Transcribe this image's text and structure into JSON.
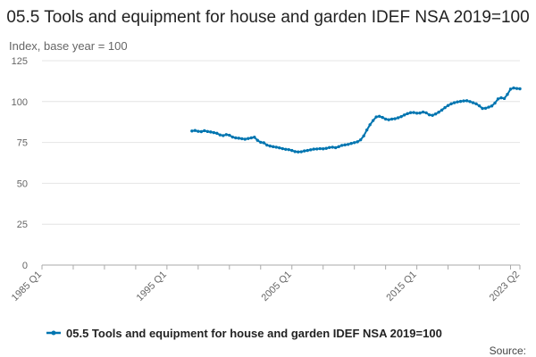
{
  "chart_data": {
    "type": "line",
    "title": "05.5 Tools and equipment for house and garden IDEF NSA 2019=100",
    "ylabel": "Index, base year = 100",
    "xlabel": "",
    "ylim": [
      0,
      125
    ],
    "yticks": [
      "0",
      "25",
      "50",
      "75",
      "100",
      "125"
    ],
    "xlim": [
      "1985 Q1",
      "2023 Q2"
    ],
    "xticks": [
      "1985 Q1",
      "1995 Q1",
      "2005 Q1",
      "2015 Q1",
      "2023 Q2"
    ],
    "grid": true,
    "legend_position": "bottom",
    "series": [
      {
        "name": "05.5 Tools and equipment for house and garden IDEF NSA 2019=100",
        "color": "#0075b0",
        "points": [
          [
            "1997 Q1",
            82.0
          ],
          [
            "1997 Q2",
            82.3
          ],
          [
            "1997 Q3",
            81.8
          ],
          [
            "1997 Q4",
            81.6
          ],
          [
            "1998 Q1",
            82.2
          ],
          [
            "1998 Q2",
            81.7
          ],
          [
            "1998 Q3",
            81.4
          ],
          [
            "1998 Q4",
            81.0
          ],
          [
            "1999 Q1",
            80.6
          ],
          [
            "1999 Q2",
            79.6
          ],
          [
            "1999 Q3",
            79.2
          ],
          [
            "1999 Q4",
            79.8
          ],
          [
            "2000 Q1",
            79.4
          ],
          [
            "2000 Q2",
            78.3
          ],
          [
            "2000 Q3",
            77.8
          ],
          [
            "2000 Q4",
            77.6
          ],
          [
            "2001 Q1",
            77.3
          ],
          [
            "2001 Q2",
            77.0
          ],
          [
            "2001 Q3",
            77.4
          ],
          [
            "2001 Q4",
            77.8
          ],
          [
            "2002 Q1",
            78.2
          ],
          [
            "2002 Q2",
            76.3
          ],
          [
            "2002 Q3",
            75.1
          ],
          [
            "2002 Q4",
            74.8
          ],
          [
            "2003 Q1",
            73.4
          ],
          [
            "2003 Q2",
            72.8
          ],
          [
            "2003 Q3",
            72.4
          ],
          [
            "2003 Q4",
            72.1
          ],
          [
            "2004 Q1",
            71.7
          ],
          [
            "2004 Q2",
            71.2
          ],
          [
            "2004 Q3",
            70.8
          ],
          [
            "2004 Q4",
            70.6
          ],
          [
            "2005 Q1",
            70.1
          ],
          [
            "2005 Q2",
            69.4
          ],
          [
            "2005 Q3",
            69.2
          ],
          [
            "2005 Q4",
            69.3
          ],
          [
            "2006 Q1",
            69.8
          ],
          [
            "2006 Q2",
            70.1
          ],
          [
            "2006 Q3",
            70.5
          ],
          [
            "2006 Q4",
            70.9
          ],
          [
            "2007 Q1",
            71.0
          ],
          [
            "2007 Q2",
            71.2
          ],
          [
            "2007 Q3",
            71.1
          ],
          [
            "2007 Q4",
            71.4
          ],
          [
            "2008 Q1",
            71.9
          ],
          [
            "2008 Q2",
            72.1
          ],
          [
            "2008 Q3",
            71.8
          ],
          [
            "2008 Q4",
            72.4
          ],
          [
            "2009 Q1",
            73.2
          ],
          [
            "2009 Q2",
            73.5
          ],
          [
            "2009 Q3",
            73.8
          ],
          [
            "2009 Q4",
            74.4
          ],
          [
            "2010 Q1",
            74.9
          ],
          [
            "2010 Q2",
            75.4
          ],
          [
            "2010 Q3",
            76.6
          ],
          [
            "2010 Q4",
            79.0
          ],
          [
            "2011 Q1",
            82.6
          ],
          [
            "2011 Q2",
            85.8
          ],
          [
            "2011 Q3",
            88.4
          ],
          [
            "2011 Q4",
            90.6
          ],
          [
            "2012 Q1",
            91.0
          ],
          [
            "2012 Q2",
            90.3
          ],
          [
            "2012 Q3",
            89.3
          ],
          [
            "2012 Q4",
            88.9
          ],
          [
            "2013 Q1",
            89.3
          ],
          [
            "2013 Q2",
            89.5
          ],
          [
            "2013 Q3",
            90.1
          ],
          [
            "2013 Q4",
            90.8
          ],
          [
            "2014 Q1",
            91.8
          ],
          [
            "2014 Q2",
            92.6
          ],
          [
            "2014 Q3",
            93.2
          ],
          [
            "2014 Q4",
            93.3
          ],
          [
            "2015 Q1",
            92.9
          ],
          [
            "2015 Q2",
            93.0
          ],
          [
            "2015 Q3",
            93.6
          ],
          [
            "2015 Q4",
            93.1
          ],
          [
            "2016 Q1",
            91.9
          ],
          [
            "2016 Q2",
            91.6
          ],
          [
            "2016 Q3",
            92.4
          ],
          [
            "2016 Q4",
            93.5
          ],
          [
            "2017 Q1",
            94.8
          ],
          [
            "2017 Q2",
            96.3
          ],
          [
            "2017 Q3",
            97.6
          ],
          [
            "2017 Q4",
            98.6
          ],
          [
            "2018 Q1",
            99.3
          ],
          [
            "2018 Q2",
            99.8
          ],
          [
            "2018 Q3",
            100.1
          ],
          [
            "2018 Q4",
            100.4
          ],
          [
            "2019 Q1",
            100.5
          ],
          [
            "2019 Q2",
            100.0
          ],
          [
            "2019 Q3",
            99.3
          ],
          [
            "2019 Q4",
            98.6
          ],
          [
            "2020 Q1",
            97.4
          ],
          [
            "2020 Q2",
            95.8
          ],
          [
            "2020 Q3",
            95.9
          ],
          [
            "2020 Q4",
            96.6
          ],
          [
            "2021 Q1",
            97.3
          ],
          [
            "2021 Q2",
            99.1
          ],
          [
            "2021 Q3",
            101.6
          ],
          [
            "2021 Q4",
            102.3
          ],
          [
            "2022 Q1",
            101.9
          ],
          [
            "2022 Q2",
            104.4
          ],
          [
            "2022 Q3",
            107.6
          ],
          [
            "2022 Q4",
            108.3
          ],
          [
            "2023 Q1",
            108.0
          ],
          [
            "2023 Q2",
            107.8
          ]
        ]
      }
    ]
  },
  "source_label": "Source:"
}
